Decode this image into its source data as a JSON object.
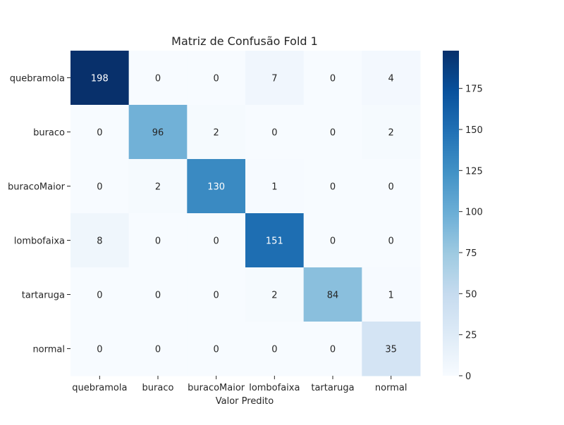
{
  "chart_data": {
    "type": "heatmap",
    "title": "Matriz de Confusão Fold 1",
    "xlabel": "Valor Predito",
    "ylabel": "",
    "x_categories": [
      "quebramola",
      "buraco",
      "buracoMaior",
      "lombofaixa",
      "tartaruga",
      "normal"
    ],
    "y_categories": [
      "quebramola",
      "buraco",
      "buracoMaior",
      "lombofaixa",
      "tartaruga",
      "normal"
    ],
    "values": [
      [
        198,
        0,
        0,
        7,
        0,
        4
      ],
      [
        0,
        96,
        2,
        0,
        0,
        2
      ],
      [
        0,
        2,
        130,
        1,
        0,
        0
      ],
      [
        8,
        0,
        0,
        151,
        0,
        0
      ],
      [
        0,
        0,
        0,
        2,
        84,
        1
      ],
      [
        0,
        0,
        0,
        0,
        0,
        35
      ]
    ],
    "colormap": "Blues",
    "colorbar": {
      "range": [
        0,
        198
      ],
      "ticks": [
        0,
        25,
        50,
        75,
        100,
        125,
        150,
        175
      ]
    },
    "grid": false,
    "legend": "colorbar-right"
  }
}
